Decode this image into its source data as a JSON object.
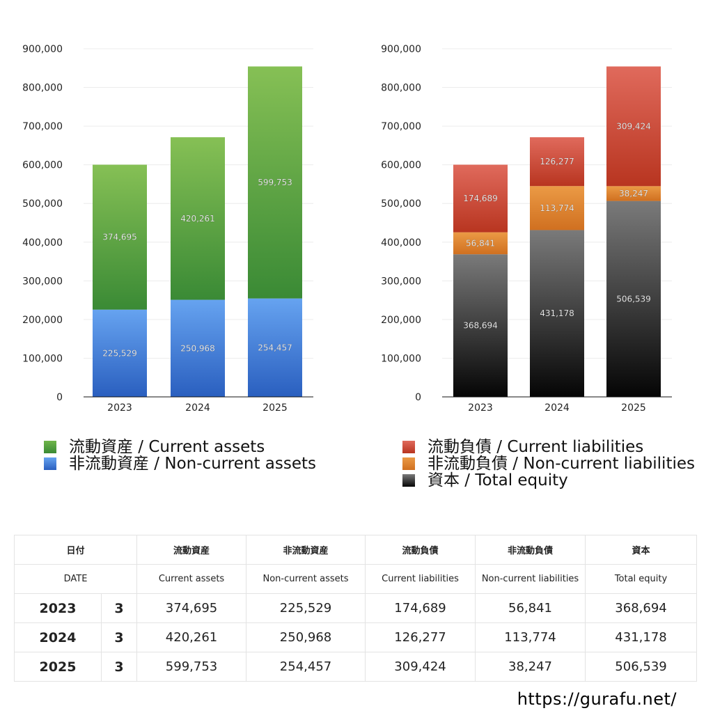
{
  "chart_data": [
    {
      "type": "bar",
      "stacked": true,
      "categories": [
        "2023",
        "2024",
        "2025"
      ],
      "ylim": [
        0,
        900000
      ],
      "yticks": [
        "0",
        "100,000",
        "200,000",
        "300,000",
        "400,000",
        "500,000",
        "600,000",
        "700,000",
        "800,000",
        "900,000"
      ],
      "grid": true,
      "legend_placement": "bottom",
      "series": [
        {
          "name": "非流動資産 / Non-current assets",
          "values": [
            225529,
            250968,
            254457
          ],
          "labels": [
            "225,529",
            "250,968",
            "254,457"
          ],
          "color_top": "#66a3f0",
          "color_bottom": "#2a5fbf"
        },
        {
          "name": "流動資産 / Current assets",
          "values": [
            374695,
            420261,
            599753
          ],
          "labels": [
            "374,695",
            "420,261",
            "599,753"
          ],
          "color_top": "#86c055",
          "color_bottom": "#3a8a35"
        }
      ]
    },
    {
      "type": "bar",
      "stacked": true,
      "categories": [
        "2023",
        "2024",
        "2025"
      ],
      "ylim": [
        0,
        900000
      ],
      "yticks": [
        "0",
        "100,000",
        "200,000",
        "300,000",
        "400,000",
        "500,000",
        "600,000",
        "700,000",
        "800,000",
        "900,000"
      ],
      "grid": true,
      "legend_placement": "bottom",
      "series": [
        {
          "name": "資本 / Total equity",
          "values": [
            368694,
            431178,
            506539
          ],
          "labels": [
            "368,694",
            "431,178",
            "506,539"
          ],
          "color_top": "#7a7a7a",
          "color_bottom": "#050505"
        },
        {
          "name": "非流動負債 / Non-current liabilities",
          "values": [
            56841,
            113774,
            38247
          ],
          "labels": [
            "56,841",
            "113,774",
            "38,247"
          ],
          "color_top": "#eb9a45",
          "color_bottom": "#d07020"
        },
        {
          "name": "流動負債 / Current liabilities",
          "values": [
            174689,
            126277,
            309424
          ],
          "labels": [
            "174,689",
            "126,277",
            "309,424"
          ],
          "color_top": "#e06a5c",
          "color_bottom": "#b83520"
        }
      ]
    }
  ],
  "legend_left": [
    "流動資産 / Current assets",
    "非流動資産 / Non-current assets"
  ],
  "legend_right": [
    "流動負債 / Current liabilities",
    "非流動負債 / Non-current liabilities",
    "資本 / Total equity"
  ],
  "table": {
    "header_jp": [
      "日付",
      "流動資産",
      "非流動資産",
      "流動負債",
      "非流動負債",
      "資本"
    ],
    "header_en": [
      "DATE",
      "Current assets",
      "Non-current assets",
      "Current liabilities",
      "Non-current liabilities",
      "Total equity"
    ],
    "rows": [
      [
        "2023",
        "3",
        "374,695",
        "225,529",
        "174,689",
        "56,841",
        "368,694"
      ],
      [
        "2024",
        "3",
        "420,261",
        "250,968",
        "126,277",
        "113,774",
        "431,178"
      ],
      [
        "2025",
        "3",
        "599,753",
        "254,457",
        "309,424",
        "38,247",
        "506,539"
      ]
    ]
  },
  "footer_url": "https://gurafu.net/"
}
